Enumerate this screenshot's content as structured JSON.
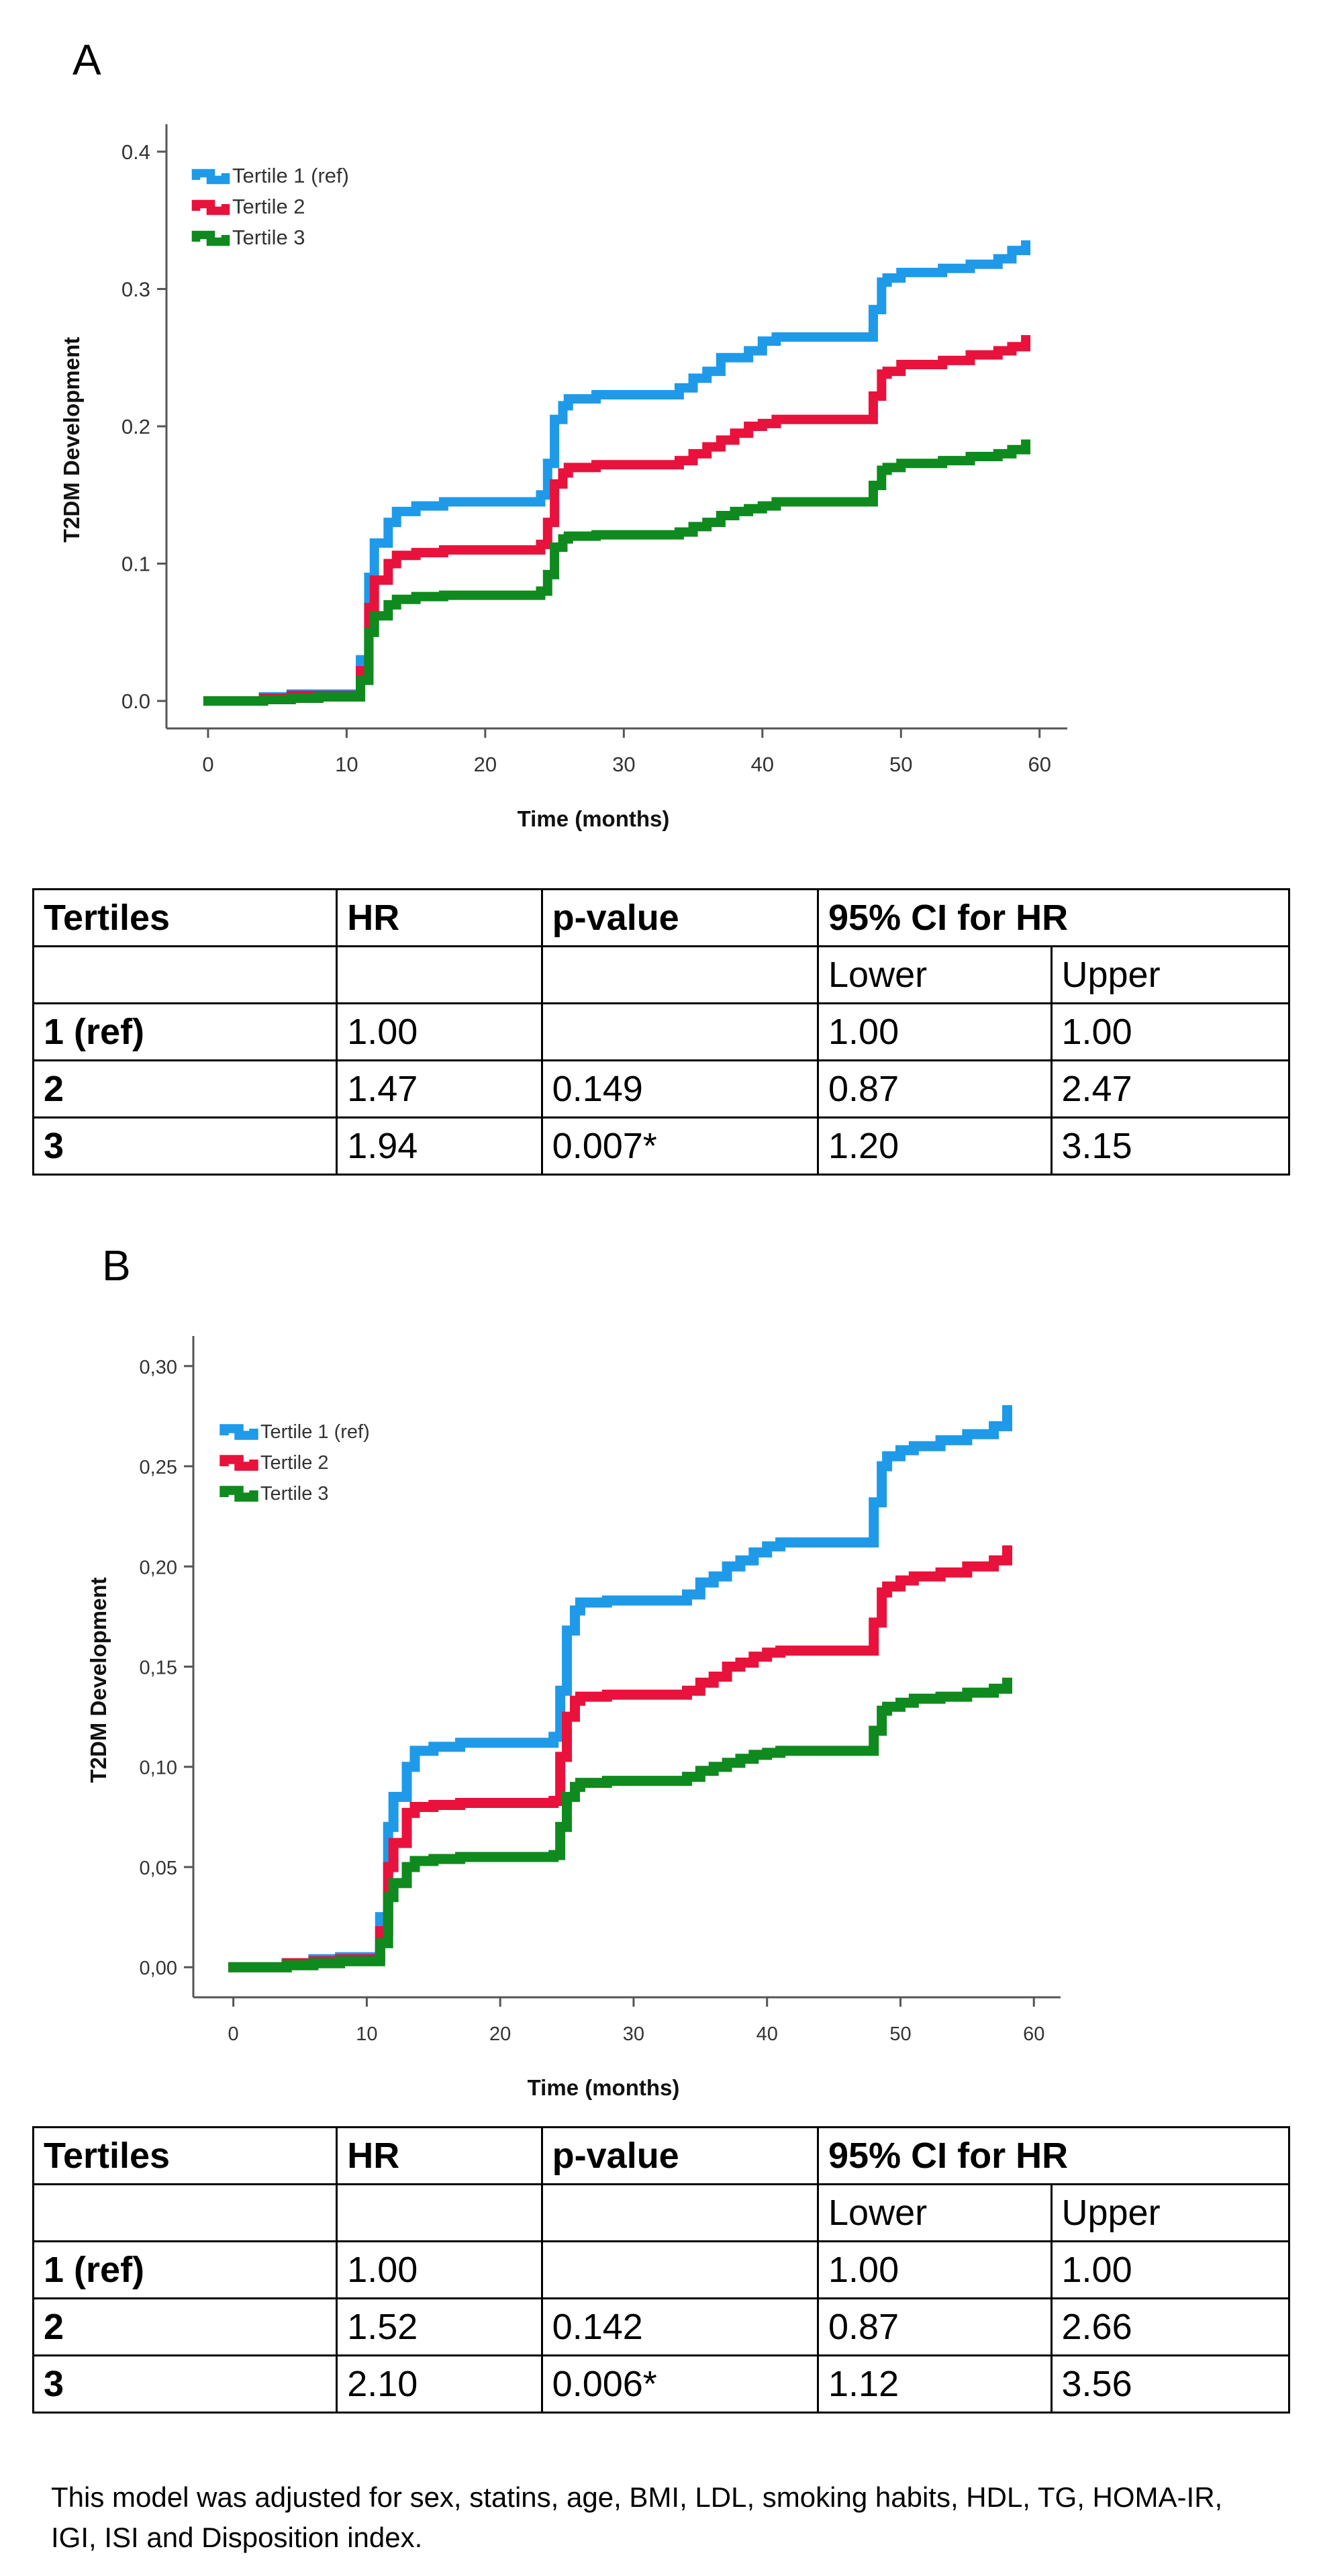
{
  "colors": {
    "tertile1": "#1f9ae8",
    "tertile2": "#e8123c",
    "tertile3": "#0f8a1e"
  },
  "chart_data": [
    {
      "panel": "A",
      "type": "line",
      "step": true,
      "xlabel": "Time (months)",
      "ylabel": "T2DM Development",
      "xlim": [
        -3,
        62
      ],
      "ylim": [
        -0.02,
        0.42
      ],
      "xticks": [
        0,
        10,
        20,
        30,
        40,
        50,
        60
      ],
      "yticks": [
        0.0,
        0.1,
        0.2,
        0.3,
        0.4
      ],
      "ytick_labels": [
        "0.0",
        "0.1",
        "0.2",
        "0.3",
        "0.4"
      ],
      "legend_position": "top-left",
      "series": [
        {
          "name": "Tertile 1 (ref)",
          "x": [
            0,
            4,
            6,
            8,
            11,
            11.6,
            12,
            12.5,
            13,
            13.6,
            15,
            17,
            24,
            24.5,
            25,
            25.6,
            26,
            28,
            34,
            35,
            36,
            37,
            38,
            39,
            40,
            41,
            42,
            48,
            48.6,
            49,
            50,
            51,
            53,
            55,
            57,
            58,
            59
          ],
          "values": [
            0,
            0.003,
            0.005,
            0.005,
            0.03,
            0.09,
            0.115,
            0.115,
            0.13,
            0.138,
            0.142,
            0.145,
            0.15,
            0.173,
            0.205,
            0.215,
            0.22,
            0.223,
            0.228,
            0.235,
            0.24,
            0.25,
            0.25,
            0.255,
            0.262,
            0.265,
            0.265,
            0.285,
            0.305,
            0.308,
            0.312,
            0.312,
            0.315,
            0.318,
            0.322,
            0.328,
            0.332
          ]
        },
        {
          "name": "Tertile 2",
          "x": [
            0,
            4,
            6,
            8,
            11,
            11.6,
            12,
            12.5,
            13,
            13.6,
            15,
            17,
            24,
            24.5,
            25,
            25.6,
            26,
            28,
            34,
            35,
            36,
            37,
            38,
            39,
            40,
            41,
            42,
            48,
            48.6,
            49,
            50,
            51,
            53,
            55,
            57,
            58,
            59
          ],
          "values": [
            0,
            0.002,
            0.004,
            0.004,
            0.022,
            0.068,
            0.088,
            0.088,
            0.1,
            0.106,
            0.108,
            0.11,
            0.114,
            0.13,
            0.158,
            0.166,
            0.17,
            0.172,
            0.175,
            0.18,
            0.185,
            0.19,
            0.195,
            0.2,
            0.202,
            0.205,
            0.205,
            0.222,
            0.238,
            0.24,
            0.245,
            0.245,
            0.248,
            0.252,
            0.255,
            0.258,
            0.263
          ]
        },
        {
          "name": "Tertile 3",
          "x": [
            0,
            4,
            6,
            8,
            11,
            11.6,
            12,
            12.5,
            13,
            13.6,
            15,
            17,
            24,
            24.5,
            25,
            25.6,
            26,
            28,
            34,
            35,
            36,
            37,
            38,
            39,
            40,
            41,
            42,
            48,
            48.6,
            49,
            50,
            51,
            53,
            55,
            57,
            58,
            59
          ],
          "values": [
            0,
            0.001,
            0.002,
            0.003,
            0.015,
            0.05,
            0.062,
            0.062,
            0.07,
            0.074,
            0.076,
            0.077,
            0.08,
            0.092,
            0.112,
            0.118,
            0.12,
            0.121,
            0.123,
            0.127,
            0.13,
            0.135,
            0.138,
            0.14,
            0.142,
            0.145,
            0.145,
            0.157,
            0.168,
            0.17,
            0.173,
            0.173,
            0.175,
            0.178,
            0.18,
            0.183,
            0.187
          ]
        }
      ]
    },
    {
      "panel": "B",
      "type": "line",
      "step": true,
      "xlabel": "Time (months)",
      "ylabel": "T2DM Development",
      "xlim": [
        -3,
        62
      ],
      "ylim": [
        -0.015,
        0.315
      ],
      "xticks": [
        0,
        10,
        20,
        30,
        40,
        50,
        60
      ],
      "yticks": [
        0.0,
        0.05,
        0.1,
        0.15,
        0.2,
        0.25,
        0.3
      ],
      "ytick_labels": [
        "0,00",
        "0,05",
        "0,10",
        "0,15",
        "0,20",
        "0,25",
        "0,30"
      ],
      "legend_position": "top-left",
      "series": [
        {
          "name": "Tertile 1 (ref)",
          "x": [
            0,
            4,
            6,
            8,
            11,
            11.6,
            12,
            12.5,
            13,
            13.6,
            15,
            17,
            24,
            24.5,
            25,
            25.6,
            26,
            28,
            34,
            35,
            36,
            37,
            38,
            39,
            40,
            41,
            42,
            48,
            48.6,
            49,
            50,
            51,
            53,
            55,
            57,
            58
          ],
          "values": [
            0,
            0.002,
            0.004,
            0.005,
            0.025,
            0.07,
            0.085,
            0.085,
            0.1,
            0.108,
            0.11,
            0.112,
            0.115,
            0.138,
            0.168,
            0.178,
            0.182,
            0.183,
            0.186,
            0.192,
            0.195,
            0.2,
            0.203,
            0.207,
            0.21,
            0.212,
            0.212,
            0.232,
            0.25,
            0.255,
            0.258,
            0.26,
            0.263,
            0.266,
            0.27,
            0.278
          ]
        },
        {
          "name": "Tertile 2",
          "x": [
            0,
            4,
            6,
            8,
            11,
            11.6,
            12,
            12.5,
            13,
            13.6,
            15,
            17,
            24,
            24.5,
            25,
            25.6,
            26,
            28,
            34,
            35,
            36,
            37,
            38,
            39,
            40,
            41,
            42,
            48,
            48.6,
            49,
            50,
            51,
            53,
            55,
            57,
            58
          ],
          "values": [
            0,
            0.002,
            0.003,
            0.004,
            0.018,
            0.05,
            0.062,
            0.062,
            0.077,
            0.08,
            0.081,
            0.082,
            0.083,
            0.105,
            0.125,
            0.133,
            0.135,
            0.136,
            0.138,
            0.142,
            0.145,
            0.15,
            0.152,
            0.155,
            0.157,
            0.158,
            0.158,
            0.172,
            0.187,
            0.19,
            0.193,
            0.195,
            0.197,
            0.2,
            0.203,
            0.208
          ]
        },
        {
          "name": "Tertile 3",
          "x": [
            0,
            4,
            6,
            8,
            11,
            11.6,
            12,
            12.5,
            13,
            13.6,
            15,
            17,
            24,
            24.5,
            25,
            25.6,
            26,
            28,
            34,
            35,
            36,
            37,
            38,
            39,
            40,
            41,
            42,
            48,
            48.6,
            49,
            50,
            51,
            53,
            55,
            57,
            58
          ],
          "values": [
            0,
            0.001,
            0.002,
            0.003,
            0.012,
            0.035,
            0.042,
            0.042,
            0.05,
            0.053,
            0.054,
            0.055,
            0.056,
            0.07,
            0.085,
            0.09,
            0.092,
            0.093,
            0.095,
            0.098,
            0.1,
            0.102,
            0.104,
            0.106,
            0.107,
            0.108,
            0.108,
            0.118,
            0.128,
            0.13,
            0.132,
            0.134,
            0.135,
            0.137,
            0.139,
            0.142
          ]
        }
      ]
    }
  ],
  "panels": [
    {
      "label": "A",
      "table": {
        "headers": [
          "Tertiles",
          "HR",
          "p-value",
          "95% CI for HR"
        ],
        "subheaders": [
          "Lower",
          "Upper"
        ],
        "rows": [
          [
            "1 (ref)",
            "1.00",
            "",
            "1.00",
            "1.00"
          ],
          [
            "2",
            "1.47",
            "0.149",
            "0.87",
            "2.47"
          ],
          [
            "3",
            "1.94",
            "0.007*",
            "1.20",
            "3.15"
          ]
        ]
      }
    },
    {
      "label": "B",
      "table": {
        "headers": [
          "Tertiles",
          "HR",
          "p-value",
          "95% CI for HR"
        ],
        "subheaders": [
          "Lower",
          "Upper"
        ],
        "rows": [
          [
            "1 (ref)",
            "1.00",
            "",
            "1.00",
            "1.00"
          ],
          [
            "2",
            "1.52",
            "0.142",
            "0.87",
            "2.66"
          ],
          [
            "3",
            "2.10",
            "0.006*",
            "1.12",
            "3.56"
          ]
        ]
      }
    }
  ],
  "footnote": "This model was adjusted for sex, statins, age, BMI, LDL, smoking habits, HDL, TG, HOMA-IR, IGI, ISI and Disposition index."
}
